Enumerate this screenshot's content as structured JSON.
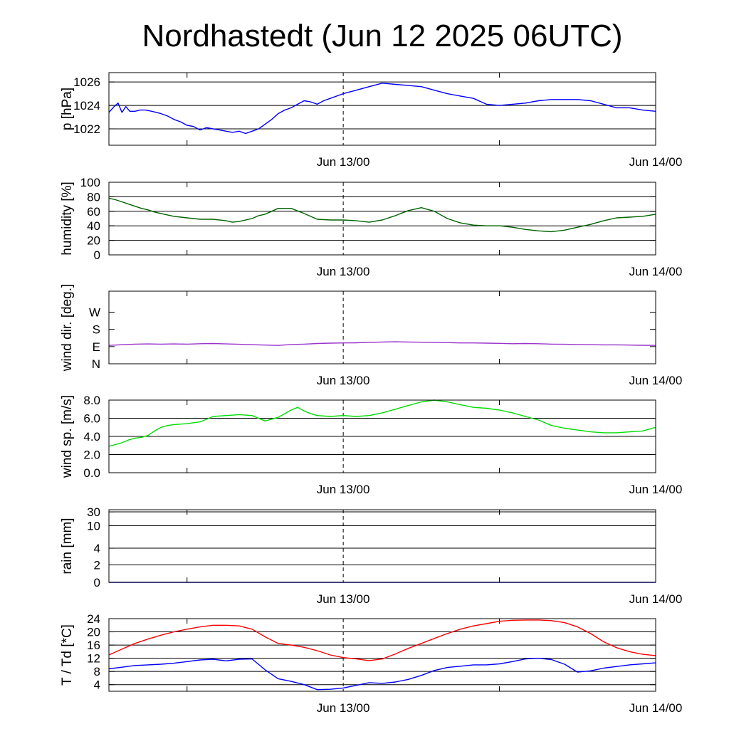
{
  "title": "Nordhastedt (Jun 12 2025 06UTC)",
  "chart_data": [
    {
      "id": "pressure",
      "type": "line",
      "ylabel": "p [hPa]",
      "yticks": [
        1022,
        1024,
        1026
      ],
      "ylim": [
        1020.6,
        1026.8
      ],
      "grid": [
        1022,
        1024,
        1026
      ],
      "x_range_hours": [
        0,
        42
      ],
      "series": [
        {
          "color": "#0000ff",
          "x": [
            0,
            0.4,
            0.7,
            1,
            1.3,
            1.6,
            2,
            2.4,
            2.8,
            3.3,
            4,
            4.5,
            5,
            5.5,
            6,
            6.5,
            7,
            7.5,
            8,
            8.5,
            9,
            9.5,
            10,
            10.5,
            11,
            11.5,
            12,
            12.5,
            13,
            13.5,
            14,
            14.5,
            15,
            15.5,
            16,
            16.5,
            17,
            18,
            19,
            20,
            21,
            22,
            23,
            24,
            25,
            26,
            27,
            28,
            29,
            30,
            31,
            32,
            33,
            34,
            35,
            36,
            37,
            38,
            39,
            40,
            41,
            42
          ],
          "y": [
            1023.4,
            1023.9,
            1024.2,
            1023.4,
            1023.9,
            1023.5,
            1023.5,
            1023.6,
            1023.6,
            1023.5,
            1023.3,
            1023.1,
            1022.8,
            1022.6,
            1022.3,
            1022.2,
            1021.9,
            1022.1,
            1022.0,
            1021.9,
            1021.8,
            1021.7,
            1021.8,
            1021.6,
            1021.8,
            1022.0,
            1022.4,
            1022.8,
            1023.3,
            1023.6,
            1023.8,
            1024.1,
            1024.4,
            1024.3,
            1024.1,
            1024.4,
            1024.6,
            1025.0,
            1025.3,
            1025.6,
            1025.9,
            1025.8,
            1025.7,
            1025.6,
            1025.3,
            1025.0,
            1024.8,
            1024.6,
            1024.1,
            1024.0,
            1024.1,
            1024.2,
            1024.4,
            1024.5,
            1024.5,
            1024.5,
            1024.4,
            1024.1,
            1023.8,
            1023.8,
            1023.6,
            1023.5
          ]
        }
      ]
    },
    {
      "id": "humidity",
      "type": "line",
      "ylabel": "humidity [%]",
      "yticks": [
        0,
        20,
        40,
        60,
        80,
        100
      ],
      "ylim": [
        0,
        100
      ],
      "grid": [
        20,
        40,
        60,
        80
      ],
      "x_range_hours": [
        0,
        42
      ],
      "series": [
        {
          "color": "#006400",
          "x": [
            0,
            0.5,
            1,
            1.5,
            2,
            2.5,
            3,
            3.5,
            4,
            4.5,
            5,
            6,
            7,
            8,
            9,
            9.5,
            10,
            11,
            11.5,
            12,
            12.5,
            13,
            14,
            15,
            16,
            17,
            18,
            19,
            20,
            21,
            22,
            23,
            24,
            25,
            26,
            27,
            28,
            29,
            30,
            31,
            32,
            33,
            34,
            35,
            36,
            37,
            38,
            39,
            40,
            41,
            42
          ],
          "y": [
            78,
            76,
            73,
            70,
            67,
            64,
            62,
            59,
            57,
            55,
            53,
            51,
            49,
            49,
            47,
            45,
            46,
            50,
            54,
            56,
            60,
            64,
            64,
            57,
            49,
            48,
            48,
            47,
            45,
            48,
            54,
            61,
            65,
            60,
            50,
            44,
            41,
            40,
            40,
            38,
            35,
            33,
            32,
            34,
            38,
            42,
            47,
            51,
            52,
            53,
            56
          ]
        }
      ]
    },
    {
      "id": "wind_direction",
      "type": "line",
      "ylabel": "wind dir. [deg.]",
      "yticks": [
        "N",
        "E",
        "S",
        "W"
      ],
      "ylim": [
        0,
        380
      ],
      "grid": [],
      "x_range_hours": [
        0,
        42
      ],
      "series": [
        {
          "color": "#9933cc",
          "x": [
            0,
            1,
            2,
            3,
            4,
            5,
            6,
            7,
            8,
            9,
            10,
            11,
            12,
            13,
            14,
            15,
            16,
            17,
            18,
            19,
            20,
            21,
            22,
            23,
            24,
            25,
            26,
            27,
            28,
            29,
            30,
            31,
            32,
            33,
            34,
            35,
            36,
            37,
            38,
            39,
            40,
            41,
            42
          ],
          "y": [
            96,
            100,
            103,
            104,
            103,
            104,
            103,
            105,
            106,
            104,
            102,
            100,
            98,
            96,
            101,
            103,
            106,
            108,
            109,
            110,
            112,
            114,
            115,
            114,
            113,
            112,
            111,
            109,
            109,
            108,
            107,
            105,
            106,
            105,
            103,
            102,
            101,
            100,
            99,
            99,
            98,
            97,
            96
          ]
        }
      ]
    },
    {
      "id": "wind_speed",
      "type": "line",
      "ylabel": "wind sp. [m/s]",
      "yticks": [
        "0.0",
        "2.0",
        "4.0",
        "6.0",
        "8.0"
      ],
      "ylim": [
        0,
        8.0
      ],
      "grid": [
        2.0,
        4.0,
        6.0,
        8.0
      ],
      "x_range_hours": [
        0,
        42
      ],
      "series": [
        {
          "color": "#00dd00",
          "x": [
            0,
            0.5,
            1,
            1.5,
            2,
            2.5,
            3,
            3.5,
            4,
            4.5,
            5,
            6,
            7,
            8,
            9,
            10,
            11,
            12,
            13,
            13.5,
            14,
            14.5,
            15,
            15.5,
            16,
            17,
            18,
            19,
            20,
            21,
            22,
            23,
            24,
            25,
            26,
            27,
            28,
            29,
            30,
            31,
            32,
            33,
            34,
            35,
            36,
            37,
            38,
            39,
            40,
            41,
            42
          ],
          "y": [
            2.9,
            3.1,
            3.3,
            3.6,
            3.8,
            3.9,
            4.1,
            4.6,
            5.0,
            5.2,
            5.3,
            5.4,
            5.6,
            6.2,
            6.3,
            6.4,
            6.3,
            5.7,
            6.1,
            6.5,
            6.9,
            7.2,
            6.8,
            6.5,
            6.3,
            6.2,
            6.3,
            6.2,
            6.3,
            6.6,
            7.0,
            7.4,
            7.8,
            8.0,
            7.8,
            7.5,
            7.2,
            7.1,
            6.9,
            6.6,
            6.2,
            5.8,
            5.2,
            4.9,
            4.7,
            4.5,
            4.4,
            4.4,
            4.5,
            4.6,
            5.0
          ]
        }
      ]
    },
    {
      "id": "rain",
      "type": "line",
      "ylabel": "rain [mm]",
      "yticks": [
        0,
        2,
        4,
        10,
        30
      ],
      "ytick_positions": [
        0,
        0.24,
        0.47,
        0.78,
        0.97
      ],
      "ylim": [
        0,
        30
      ],
      "grid": [
        2,
        4,
        10,
        30
      ],
      "x_range_hours": [
        0,
        42
      ],
      "series": [
        {
          "color": "#0000ff",
          "x": [
            0,
            42
          ],
          "y": [
            0,
            0
          ]
        }
      ]
    },
    {
      "id": "temperature",
      "type": "line",
      "ylabel": "T / Td [*C]",
      "yticks": [
        4,
        8,
        12,
        16,
        20,
        24
      ],
      "ylim": [
        2,
        24
      ],
      "grid": [
        4,
        8,
        12,
        16,
        20,
        24
      ],
      "x_range_hours": [
        0,
        42
      ],
      "series": [
        {
          "color": "#ff0000",
          "x": [
            0,
            1,
            2,
            3,
            4,
            5,
            6,
            7,
            8,
            9,
            10,
            11,
            12,
            13,
            14,
            15,
            16,
            17,
            18,
            19,
            20,
            21,
            22,
            23,
            24,
            25,
            26,
            27,
            28,
            29,
            30,
            31,
            32,
            33,
            34,
            35,
            36,
            37,
            38,
            39,
            40,
            41,
            42
          ],
          "y": [
            13,
            14.8,
            16.5,
            17.8,
            19,
            20,
            20.8,
            21.5,
            22,
            22,
            21.8,
            20.8,
            18.5,
            16.5,
            16,
            15.3,
            14.3,
            13,
            12.2,
            11.8,
            11.3,
            11.8,
            13.3,
            15,
            16.5,
            18,
            19.5,
            20.8,
            21.8,
            22.5,
            23.2,
            23.5,
            23.6,
            23.6,
            23.4,
            22.8,
            21.5,
            19.5,
            17,
            15.2,
            14,
            13.2,
            12.8
          ]
        },
        {
          "color": "#0000ff",
          "x": [
            0,
            1,
            2,
            3,
            4,
            5,
            6,
            7,
            8,
            9,
            10,
            11,
            12,
            13,
            14,
            15,
            16,
            17,
            18,
            19,
            20,
            21,
            22,
            23,
            24,
            25,
            26,
            27,
            28,
            29,
            30,
            31,
            32,
            33,
            34,
            35,
            36,
            37,
            38,
            39,
            40,
            41,
            42
          ],
          "y": [
            8.8,
            9.3,
            9.8,
            10,
            10.2,
            10.5,
            11,
            11.5,
            11.7,
            11.2,
            11.7,
            11.8,
            8.5,
            5.8,
            5,
            4,
            2.5,
            2.6,
            3,
            3.8,
            4.6,
            4.4,
            4.8,
            5.6,
            6.8,
            8.3,
            9.2,
            9.6,
            10,
            10,
            10.3,
            11,
            11.8,
            12,
            11.6,
            10.2,
            7.8,
            8.2,
            9,
            9.5,
            10,
            10.3,
            10.6
          ]
        }
      ]
    }
  ],
  "xticks": [
    {
      "label": "Jun 13/00",
      "hour": 18
    },
    {
      "label": "Jun 14/00",
      "hour": 42
    }
  ],
  "minor_tick_hours": [
    6,
    30
  ],
  "midnight_marker_hour": 18
}
